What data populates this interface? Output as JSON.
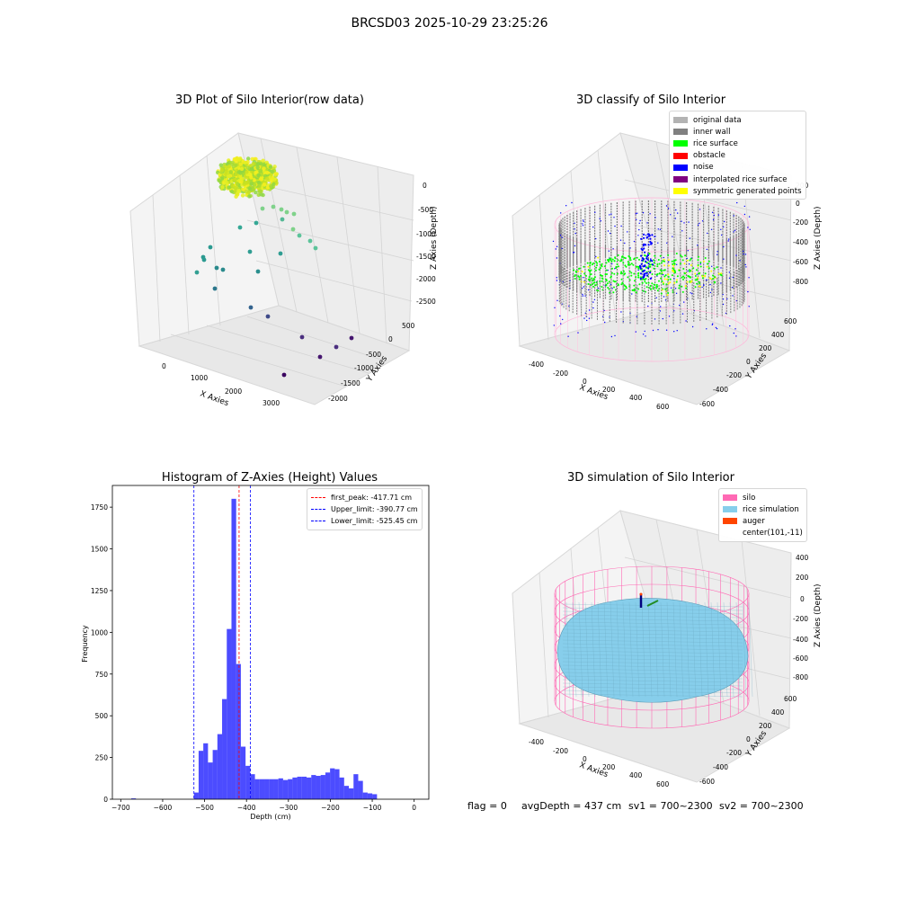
{
  "suptitle": "BRCSD03 2025-10-29 23:25:26",
  "colors": {
    "original": "#b3b3b3",
    "inner_wall": "#808080",
    "rice_surface": "#00ff00",
    "obstacle": "#ff0000",
    "noise": "#0000ff",
    "interpolated": "#800080",
    "symmetric": "#ffff00",
    "silo": "#ff69b4",
    "rice_sim": "#87ceeb",
    "auger": "#ff4500",
    "hist_bar": "#0000ff"
  },
  "panels": {
    "raw": {
      "title": "3D Plot of Silo Interior(row data)",
      "xlabel": "X Axies",
      "ylabel": "Y Axies",
      "zlabel": "Z Axies (Depth)",
      "xticks": [
        "0",
        "1000",
        "2000",
        "3000"
      ],
      "yticks": [
        "500",
        "0",
        "-500",
        "-1000",
        "-1500",
        "-2000"
      ],
      "zticks": [
        "0",
        "-500",
        "-1000",
        "-1500",
        "-2000",
        "-2500"
      ]
    },
    "classify": {
      "title": "3D classify of Silo Interior",
      "xlabel": "X Axies",
      "ylabel": "Y Axies",
      "zlabel": "Z Axies (Depth)",
      "xticks": [
        "-400",
        "-200",
        "0",
        "200",
        "400",
        "600"
      ],
      "yticks": [
        "600",
        "400",
        "200",
        "0",
        "-200",
        "-400",
        "-600"
      ],
      "zticks": [
        "200",
        "0",
        "-200",
        "-400",
        "-600",
        "-800"
      ],
      "legend": [
        {
          "label": "original data",
          "color": "#b3b3b3"
        },
        {
          "label": "inner wall",
          "color": "#808080"
        },
        {
          "label": "rice surface",
          "color": "#00ff00"
        },
        {
          "label": "obstacle",
          "color": "#ff0000"
        },
        {
          "label": "noise",
          "color": "#0000ff"
        },
        {
          "label": "interpolated rice surface",
          "color": "#800080"
        },
        {
          "label": "symmetric generated points",
          "color": "#ffff00"
        }
      ]
    },
    "simulation": {
      "title": "3D simulation of Silo Interior",
      "xlabel": "X Axies",
      "ylabel": "Y Axies",
      "zlabel": "Z Axies (Depth)",
      "xticks": [
        "-400",
        "-200",
        "0",
        "200",
        "400",
        "600"
      ],
      "yticks": [
        "600",
        "400",
        "200",
        "0",
        "-200",
        "-400",
        "-600"
      ],
      "zticks": [
        "400",
        "200",
        "0",
        "-200",
        "-400",
        "-600",
        "-800"
      ],
      "legend": [
        {
          "label": "silo",
          "color": "#ff69b4"
        },
        {
          "label": "rice simulation",
          "color": "#87ceeb"
        },
        {
          "label": "auger",
          "color": "#ff4500"
        },
        {
          "label": "center(101,-11)",
          "color": ""
        }
      ]
    }
  },
  "footer": {
    "flag": "flag = 0",
    "avg": "avgDepth = 437 cm",
    "sv1": "sv1 = 700~2300",
    "sv2": "sv2 = 700~2300"
  },
  "chart_data": {
    "type": "bar",
    "title": "Histogram of Z-Axies (Height) Values",
    "xlabel": "Depth (cm)",
    "ylabel": "Frequency",
    "xlim": [
      -720,
      35
    ],
    "ylim": [
      0,
      1880
    ],
    "xticks": [
      -700,
      -600,
      -500,
      -400,
      -300,
      -200,
      -100,
      0
    ],
    "yticks": [
      0,
      250,
      500,
      750,
      1000,
      1250,
      1500,
      1750
    ],
    "bin_width": 11.2,
    "bins": [
      {
        "x": -675,
        "value": 5
      },
      {
        "x": -525.45,
        "value": 40
      },
      {
        "x": -514.25,
        "value": 290
      },
      {
        "x": -503.05,
        "value": 335
      },
      {
        "x": -491.85,
        "value": 220
      },
      {
        "x": -480.65,
        "value": 295
      },
      {
        "x": -469.45,
        "value": 390
      },
      {
        "x": -458.25,
        "value": 600
      },
      {
        "x": -447.05,
        "value": 1020
      },
      {
        "x": -435.85,
        "value": 1800
      },
      {
        "x": -424.65,
        "value": 810
      },
      {
        "x": -413.45,
        "value": 315
      },
      {
        "x": -402.25,
        "value": 200
      },
      {
        "x": -391.05,
        "value": 150
      },
      {
        "x": -379.85,
        "value": 120
      },
      {
        "x": -368.65,
        "value": 120
      },
      {
        "x": -357.45,
        "value": 120
      },
      {
        "x": -346.25,
        "value": 120
      },
      {
        "x": -335.05,
        "value": 120
      },
      {
        "x": -323.85,
        "value": 125
      },
      {
        "x": -312.65,
        "value": 115
      },
      {
        "x": -301.45,
        "value": 120
      },
      {
        "x": -290.25,
        "value": 130
      },
      {
        "x": -279.05,
        "value": 135
      },
      {
        "x": -267.85,
        "value": 135
      },
      {
        "x": -256.65,
        "value": 130
      },
      {
        "x": -245.45,
        "value": 145
      },
      {
        "x": -234.25,
        "value": 140
      },
      {
        "x": -223.05,
        "value": 145
      },
      {
        "x": -211.85,
        "value": 160
      },
      {
        "x": -200.65,
        "value": 185
      },
      {
        "x": -189.45,
        "value": 180
      },
      {
        "x": -178.25,
        "value": 130
      },
      {
        "x": -167.05,
        "value": 80
      },
      {
        "x": -155.85,
        "value": 65
      },
      {
        "x": -144.65,
        "value": 150
      },
      {
        "x": -133.45,
        "value": 110
      },
      {
        "x": -122.25,
        "value": 40
      },
      {
        "x": -111.05,
        "value": 35
      },
      {
        "x": -99.85,
        "value": 30
      }
    ],
    "vlines": [
      {
        "label": "first_peak: -417.71 cm",
        "x": -417.71,
        "color": "#ff0000"
      },
      {
        "label": "Upper_limit: -390.77 cm",
        "x": -390.77,
        "color": "#0000ff"
      },
      {
        "label": "Lower_limit: -525.45 cm",
        "x": -525.45,
        "color": "#0000ff"
      }
    ]
  }
}
